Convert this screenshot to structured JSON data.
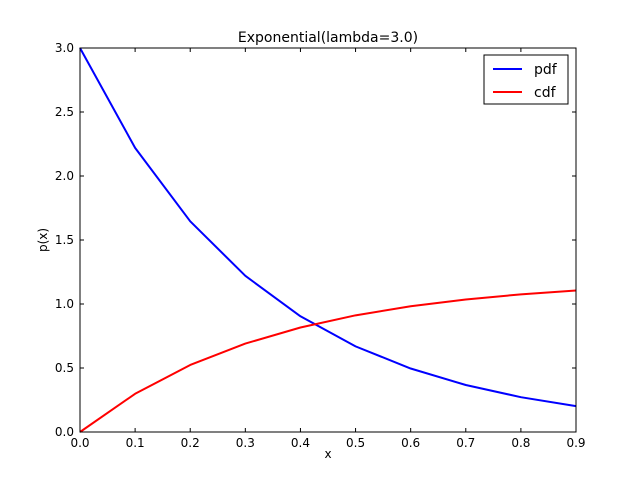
{
  "chart_data": {
    "type": "line",
    "title": "Exponential(lambda=3.0)",
    "xlabel": "x",
    "ylabel": "p(x)",
    "xlim": [
      0.0,
      0.9
    ],
    "ylim": [
      0.0,
      3.0
    ],
    "xticks": [
      "0.0",
      "0.1",
      "0.2",
      "0.3",
      "0.4",
      "0.5",
      "0.6",
      "0.7",
      "0.8",
      "0.9"
    ],
    "yticks": [
      "0.0",
      "0.5",
      "1.0",
      "1.5",
      "2.0",
      "2.5",
      "3.0"
    ],
    "grid": false,
    "legend_position": "top-right",
    "x": [
      0.0,
      0.1,
      0.2,
      0.3,
      0.4,
      0.5,
      0.6,
      0.7,
      0.8,
      0.9
    ],
    "series": [
      {
        "name": "pdf",
        "color": "#0000ff",
        "values": [
          3.0,
          2.22,
          1.646,
          1.22,
          0.904,
          0.669,
          0.496,
          0.367,
          0.272,
          0.202
        ]
      },
      {
        "name": "cdf",
        "color": "#ff0000",
        "values": [
          0.0,
          0.2985,
          0.5235,
          0.691,
          0.8165,
          0.9115,
          0.9825,
          1.0355,
          1.0755,
          1.1055
        ]
      }
    ]
  }
}
